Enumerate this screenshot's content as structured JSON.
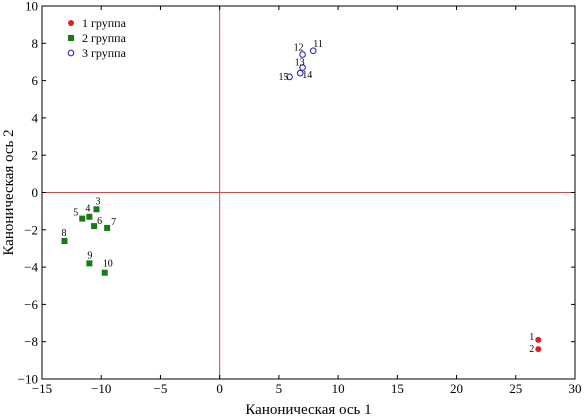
{
  "chart_data": {
    "type": "scatter",
    "xlabel": "Каноническая ось 1",
    "ylabel": "Каноническая ось 2",
    "xlim": [
      -15,
      30
    ],
    "ylim": [
      -10,
      10
    ],
    "xticks": [
      -15,
      -10,
      -5,
      0,
      5,
      10,
      15,
      20,
      25,
      30
    ],
    "yticks": [
      -10,
      -8,
      -6,
      -4,
      -2,
      0,
      2,
      4,
      6,
      8,
      10
    ],
    "reference_lines": {
      "x": 0,
      "y": 0,
      "color": "#c0504d"
    },
    "legend": {
      "placement": "top-left"
    },
    "series": [
      {
        "name": "1 группа",
        "marker": "circle-filled",
        "color": "#e02020",
        "points": [
          {
            "label": "1",
            "x": 26.9,
            "y": -7.9
          },
          {
            "label": "2",
            "x": 26.9,
            "y": -8.4
          }
        ]
      },
      {
        "name": "2 группа",
        "marker": "square-filled",
        "color": "#1a7a1a",
        "points": [
          {
            "label": "3",
            "x": -10.4,
            "y": -0.9
          },
          {
            "label": "4",
            "x": -11.0,
            "y": -1.3
          },
          {
            "label": "5",
            "x": -11.6,
            "y": -1.4
          },
          {
            "label": "6",
            "x": -10.6,
            "y": -1.8
          },
          {
            "label": "7",
            "x": -9.5,
            "y": -1.9
          },
          {
            "label": "8",
            "x": -13.1,
            "y": -2.6
          },
          {
            "label": "9",
            "x": -11.0,
            "y": -3.8
          },
          {
            "label": "10",
            "x": -9.7,
            "y": -4.3
          }
        ]
      },
      {
        "name": "3 группа",
        "marker": "circle-open",
        "color": "#2a2ab8",
        "points": [
          {
            "label": "11",
            "x": 7.9,
            "y": 7.6
          },
          {
            "label": "12",
            "x": 7.0,
            "y": 7.4
          },
          {
            "label": "13",
            "x": 7.0,
            "y": 6.7
          },
          {
            "label": "14",
            "x": 6.8,
            "y": 6.4
          },
          {
            "label": "15",
            "x": 5.9,
            "y": 6.2
          }
        ]
      }
    ]
  }
}
